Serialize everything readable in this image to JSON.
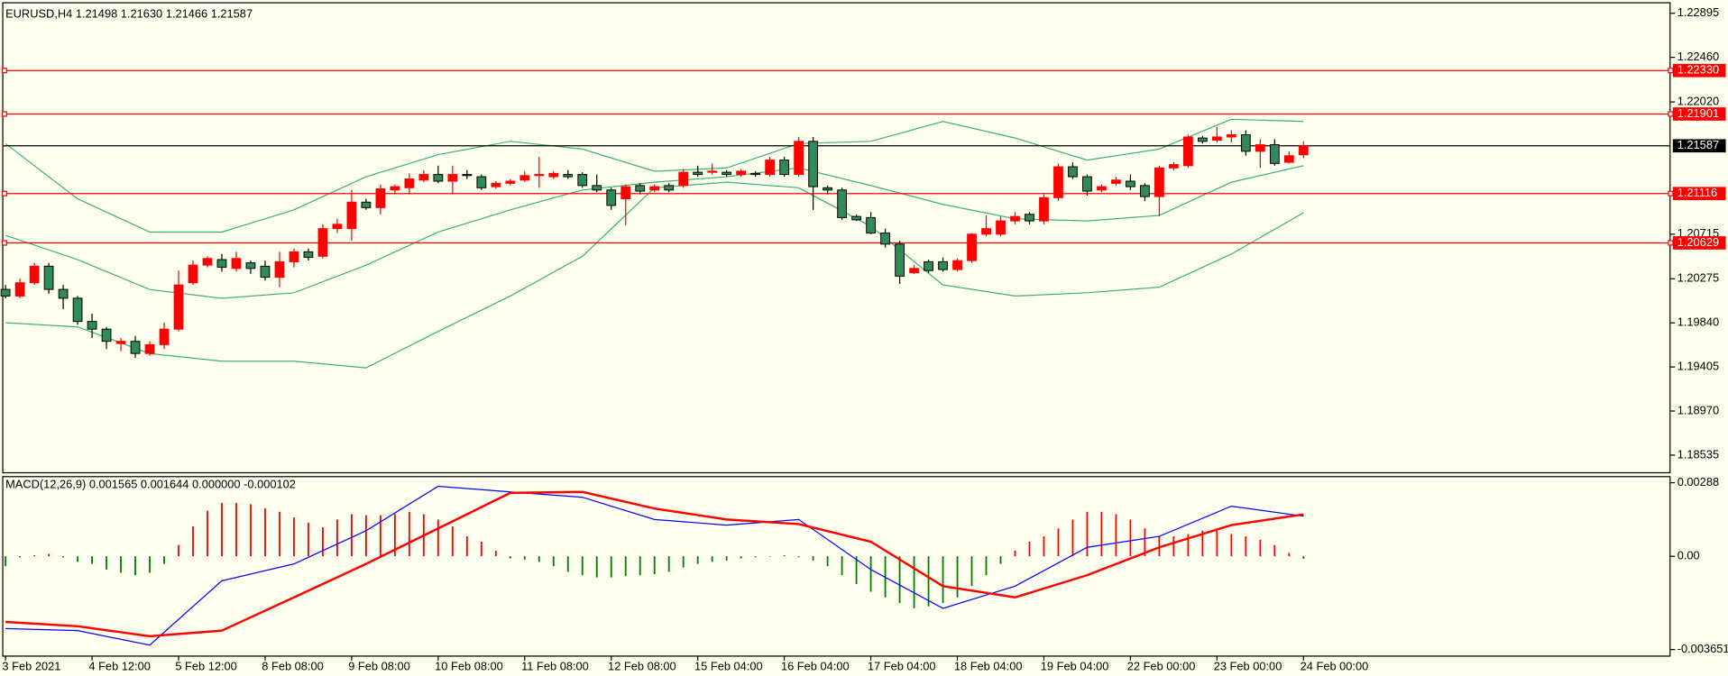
{
  "chart_data": [
    {
      "type": "candlestick",
      "title": "EURUSD,H4  1.21498 1.21630 1.21466 1.21587",
      "categories": [
        "3 Feb 2021",
        null,
        null,
        null,
        null,
        null,
        "4 Feb 12:00",
        null,
        null,
        null,
        null,
        null,
        "5 Feb 12:00",
        null,
        null,
        null,
        null,
        null,
        "8 Feb 08:00",
        null,
        null,
        null,
        null,
        null,
        "9 Feb 08:00",
        null,
        null,
        null,
        null,
        null,
        "10 Feb 08:00",
        null,
        null,
        null,
        null,
        null,
        "11 Feb 08:00",
        null,
        null,
        null,
        null,
        null,
        "12 Feb 08:00",
        null,
        null,
        null,
        null,
        null,
        "15 Feb 04:00",
        null,
        null,
        null,
        null,
        null,
        "16 Feb 04:00",
        null,
        null,
        null,
        null,
        null,
        "17 Feb 04:00",
        null,
        null,
        null,
        null,
        null,
        "18 Feb 04:00",
        null,
        null,
        null,
        null,
        null,
        "19 Feb 04:00",
        null,
        null,
        null,
        null,
        null,
        "22 Feb 00:00",
        null,
        null,
        null,
        null,
        null,
        "23 Feb 00:00",
        null,
        null,
        null,
        null,
        null,
        "24 Feb 00:00"
      ],
      "open": [
        1.2017,
        1.20105,
        1.20236,
        1.20399,
        1.2017,
        1.20083,
        1.19854,
        1.19778,
        1.19636,
        1.19658,
        1.19538,
        1.19625,
        1.19778,
        1.20236,
        1.2041,
        1.20464,
        1.20377,
        1.20432,
        1.20399,
        1.2029,
        1.20443,
        1.20541,
        1.20497,
        1.2077,
        1.2077,
        1.21031,
        1.20977,
        1.21151,
        1.21173,
        1.21249,
        1.21304,
        1.21238,
        1.21304,
        1.21282,
        1.21184,
        1.21217,
        1.21249,
        1.21293,
        1.21282,
        1.21304,
        1.21304,
        1.21195,
        1.21151,
        1.21064,
        1.21195,
        1.21151,
        1.21195,
        1.21195,
        1.21326,
        1.21326,
        1.21326,
        1.21304,
        1.21315,
        1.21304,
        1.21446,
        1.21304,
        1.21631,
        1.21173,
        1.21151,
        1.2089,
        1.20879,
        1.20726,
        1.20617,
        1.20334,
        1.20443,
        1.20443,
        1.20366,
        1.20454,
        1.20715,
        1.20715,
        1.20846,
        1.20911,
        1.20846,
        1.21075,
        1.2138,
        1.21282,
        1.21151,
        1.21217,
        1.21238,
        1.21195,
        1.21086,
        1.21369,
        1.21391,
        1.21664,
        1.21642,
        1.21674,
        1.21696,
        1.21533,
        1.21598,
        1.21424,
        1.21498
      ],
      "high": [
        1.20214,
        1.20279,
        1.20432,
        1.20432,
        1.20214,
        1.20105,
        1.1993,
        1.198,
        1.19691,
        1.19712,
        1.19658,
        1.19843,
        1.20356,
        1.20454,
        1.20497,
        1.20519,
        1.20541,
        1.20454,
        1.20454,
        1.20541,
        1.20573,
        1.20573,
        1.20813,
        1.20868,
        1.21151,
        1.21064,
        1.21206,
        1.21206,
        1.21315,
        1.21347,
        1.21391,
        1.21391,
        1.21347,
        1.21304,
        1.21238,
        1.2126,
        1.21337,
        1.21478,
        1.21337,
        1.21347,
        1.21326,
        1.21304,
        1.21173,
        1.21206,
        1.21217,
        1.21206,
        1.21217,
        1.21358,
        1.21391,
        1.21413,
        1.21347,
        1.21358,
        1.21337,
        1.21478,
        1.21478,
        1.21674,
        1.21674,
        1.21195,
        1.21173,
        1.20911,
        1.20933,
        1.2077,
        1.2065,
        1.2041,
        1.20464,
        1.20486,
        1.20475,
        1.20726,
        1.20901,
        1.2089,
        1.20933,
        1.20933,
        1.21108,
        1.21413,
        1.21424,
        1.21304,
        1.21206,
        1.21282,
        1.21304,
        1.21217,
        1.21391,
        1.21424,
        1.21696,
        1.21685,
        1.21773,
        1.2174,
        1.2174,
        1.21653,
        1.21653,
        1.21533,
        1.2163
      ],
      "low": [
        1.20083,
        1.20083,
        1.20214,
        1.20127,
        1.19974,
        1.19821,
        1.19691,
        1.19582,
        1.1956,
        1.19494,
        1.19516,
        1.19582,
        1.19756,
        1.20214,
        1.20388,
        1.20345,
        1.20345,
        1.20323,
        1.20257,
        1.20192,
        1.20388,
        1.20454,
        1.20475,
        1.20726,
        1.2065,
        1.20955,
        1.20911,
        1.21108,
        1.21108,
        1.21228,
        1.21217,
        1.21108,
        1.2126,
        1.21151,
        1.21162,
        1.21195,
        1.21228,
        1.21173,
        1.2126,
        1.2126,
        1.21173,
        1.21129,
        1.20955,
        1.20802,
        1.21108,
        1.21129,
        1.21129,
        1.21173,
        1.21282,
        1.21304,
        1.21282,
        1.21282,
        1.21282,
        1.21282,
        1.21282,
        1.21282,
        1.20955,
        1.21108,
        1.20857,
        1.20846,
        1.20715,
        1.20584,
        1.20225,
        1.20323,
        1.20334,
        1.20345,
        1.20345,
        1.20432,
        1.20693,
        1.20693,
        1.20813,
        1.20813,
        1.20813,
        1.21042,
        1.2126,
        1.21097,
        1.21129,
        1.21195,
        1.21151,
        1.21042,
        1.2089,
        1.21347,
        1.21369,
        1.21609,
        1.2162,
        1.2162,
        1.21489,
        1.21369,
        1.21391,
        1.21413,
        1.21466
      ],
      "close": [
        1.20105,
        1.20236,
        1.20399,
        1.2017,
        1.20083,
        1.19854,
        1.19778,
        1.19658,
        1.19658,
        1.19538,
        1.19625,
        1.19778,
        1.20214,
        1.2041,
        1.20475,
        1.20388,
        1.20475,
        1.20377,
        1.2029,
        1.20443,
        1.20541,
        1.20486,
        1.2077,
        1.20813,
        1.21031,
        1.20977,
        1.21162,
        1.21184,
        1.2126,
        1.21304,
        1.21238,
        1.21304,
        1.21293,
        1.21173,
        1.21217,
        1.21238,
        1.21293,
        1.21304,
        1.21315,
        1.21282,
        1.21195,
        1.21151,
        1.20999,
        1.21184,
        1.2114,
        1.21184,
        1.21151,
        1.21326,
        1.21304,
        1.21337,
        1.21304,
        1.21337,
        1.21304,
        1.21446,
        1.21304,
        1.21631,
        1.21184,
        1.21151,
        1.20879,
        1.20857,
        1.20726,
        1.20617,
        1.20301,
        1.20377,
        1.20356,
        1.20366,
        1.20454,
        1.20715,
        1.2077,
        1.20846,
        1.2089,
        1.20846,
        1.21075,
        1.2138,
        1.21282,
        1.2114,
        1.21184,
        1.21249,
        1.21184,
        1.21086,
        1.21369,
        1.21402,
        1.21674,
        1.21631,
        1.21674,
        1.21696,
        1.21533,
        1.21598,
        1.21413,
        1.21489,
        1.21587
      ],
      "up_color": "#ff0000",
      "down_color": "#2e8b57",
      "down_outline": "#000000",
      "bands_x": [
        0,
        5,
        10,
        15,
        20,
        25,
        30,
        35,
        40,
        45,
        50,
        55,
        60,
        65,
        70,
        75,
        80,
        85,
        90
      ],
      "bands": [
        {
          "values": [
            1.21609,
            1.21064,
            1.20736,
            1.20736,
            1.20955,
            1.21282,
            1.215,
            1.21631,
            1.21555,
            1.21336,
            1.21369,
            1.21609,
            1.21631,
            1.21827,
            1.21664,
            1.21446,
            1.21555,
            1.21849,
            1.21827
          ]
        },
        {
          "values": [
            1.20704,
            1.20464,
            1.20169,
            1.20082,
            1.20137,
            1.20409,
            1.20736,
            1.20955,
            1.21151,
            1.21228,
            1.21282,
            1.21369,
            1.21195,
            1.21009,
            1.20867,
            1.20846,
            1.209,
            1.21228,
            1.21391
          ]
        },
        {
          "values": [
            1.19842,
            1.198,
            1.19537,
            1.19462,
            1.19462,
            1.19396,
            1.19756,
            1.20105,
            1.20497,
            1.21173,
            1.21228,
            1.21173,
            1.20792,
            1.20214,
            1.20105,
            1.20137,
            1.20192,
            1.20519,
            1.20926
          ]
        }
      ],
      "band_color": "#3cb371",
      "levels": [
        {
          "value": 1.2233,
          "label": "1.22330"
        },
        1.21901,
        1.21116,
        1.20629
      ],
      "level_color": "#ff0000",
      "last_price": 1.21587,
      "last_price_color": "#000000",
      "ylim": [
        1.18361,
        1.22993
      ],
      "yticks": [
        1.22895,
        {
          "value": 1.2246,
          "label": "1.22460"
        },
        {
          "value": 1.2202,
          "label": "1.22020"
        },
        1.20715,
        1.20275,
        {
          "value": 1.1984,
          "label": "1.19840"
        },
        1.19405,
        {
          "value": 1.1897,
          "label": "1.18970"
        },
        1.18535
      ]
    },
    {
      "type": "macd",
      "title": "MACD(12,26,9) 0.001565 0.001644 0.000000 -0.000102",
      "histogram": [
        -0.00039,
        -4e-05,
        4e-05,
        9e-05,
        -4e-05,
        -0.00022,
        -0.0003,
        -0.00052,
        -0.00065,
        -0.00074,
        -0.00065,
        -0.0003,
        0.00044,
        0.00117,
        0.00178,
        0.00209,
        0.00209,
        0.00204,
        0.00187,
        0.00174,
        0.00152,
        0.00131,
        0.00113,
        0.00144,
        0.00165,
        0.00161,
        0.00161,
        0.00165,
        0.00174,
        0.00165,
        0.00144,
        0.00117,
        0.00078,
        0.00057,
        0.00022,
        -9e-05,
        -0.00013,
        -0.00022,
        -0.00039,
        -0.00061,
        -0.00074,
        -0.00083,
        -0.00083,
        -0.00078,
        -0.00074,
        -0.0007,
        -0.00061,
        -0.00044,
        -0.0003,
        -0.00022,
        -0.00017,
        -9e-05,
        -4e-05,
        -2e-05,
        4e-05,
        -4e-05,
        -0.00017,
        -0.00039,
        -0.00074,
        -0.00109,
        -0.00139,
        -0.00161,
        -0.00183,
        -0.00204,
        -0.00196,
        -0.00183,
        -0.00161,
        -0.00117,
        -0.00074,
        -0.0003,
        0.00022,
        0.00057,
        0.00078,
        0.00109,
        0.00144,
        0.00174,
        0.00174,
        0.00165,
        0.00144,
        0.00109,
        0.00078,
        0.00078,
        0.00087,
        0.001,
        0.001,
        0.00087,
        0.00078,
        0.00065,
        0.00044,
        0.00013,
        -0.0001
      ],
      "positive_color": "#ff0000",
      "negative_color": "#008000",
      "x": [
        0,
        5,
        10,
        15,
        20,
        25,
        30,
        35,
        40,
        45,
        50,
        55,
        60,
        65,
        70,
        75,
        80,
        85,
        90
      ],
      "series": [
        {
          "color": "#0000ff",
          "width": 1,
          "values": [
            -0.00283,
            -0.00291,
            -0.00348,
            -0.00096,
            -0.0003,
            0.001,
            0.00274,
            0.00252,
            0.00231,
            0.00144,
            0.00122,
            0.00144,
            -0.00052,
            -0.00204,
            -0.00117,
            0.00035,
            0.00078,
            0.00196,
            0.00157
          ]
        },
        {
          "color": "#ff0000",
          "width": 2,
          "values": [
            -0.00257,
            -0.00274,
            -0.00313,
            -0.00291,
            -0.00161,
            -0.0003,
            0.00109,
            0.00248,
            0.00252,
            0.00187,
            0.00144,
            0.00126,
            0.00057,
            -0.00117,
            -0.00161,
            -0.00074,
            0.00035,
            0.00122,
            0.00164
          ]
        }
      ],
      "ylim": [
        -0.00391,
        0.00314
      ],
      "yticks": [
        0.00288,
        {
          "value": 0,
          "label": "0.00"
        },
        -0.003651
      ]
    }
  ]
}
